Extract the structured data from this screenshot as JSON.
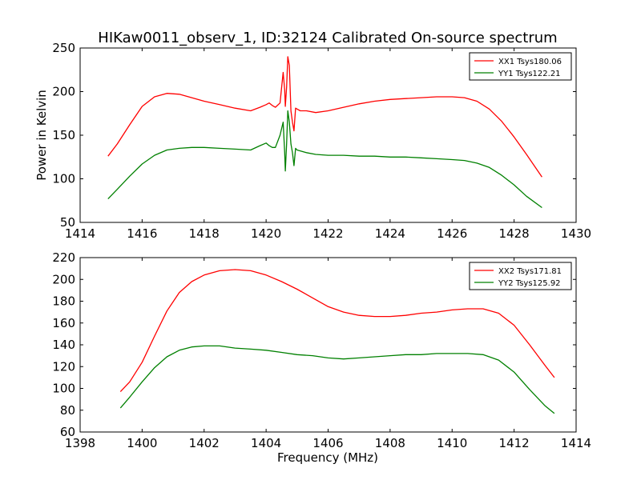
{
  "figure": {
    "title": "HIKaw0011_observ_1, ID:32124 Calibrated On-source spectrum"
  },
  "chart_data": [
    {
      "type": "line",
      "title": "HIKaw0011_observ_1, ID:32124 Calibrated On-source spectrum",
      "xlabel": "",
      "ylabel": "Power in Kelvin",
      "xlim": [
        1414,
        1430
      ],
      "ylim": [
        50,
        250
      ],
      "xticks": [
        1414,
        1416,
        1418,
        1420,
        1422,
        1424,
        1426,
        1428,
        1430
      ],
      "yticks": [
        50,
        100,
        150,
        200,
        250
      ],
      "grid": false,
      "legend_position": "top-right",
      "series": [
        {
          "name": "XX1 Tsys180.06",
          "color": "#ff0000",
          "x": [
            1414.9,
            1415.2,
            1415.6,
            1416.0,
            1416.4,
            1416.8,
            1417.2,
            1417.6,
            1418.0,
            1418.5,
            1419.0,
            1419.5,
            1419.8,
            1420.0,
            1420.1,
            1420.2,
            1420.3,
            1420.45,
            1420.55,
            1420.6,
            1420.62,
            1420.66,
            1420.7,
            1420.75,
            1420.8,
            1420.85,
            1420.9,
            1420.95,
            1421.0,
            1421.1,
            1421.3,
            1421.6,
            1422.0,
            1422.5,
            1423.0,
            1423.5,
            1424.0,
            1424.5,
            1425.0,
            1425.5,
            1426.0,
            1426.4,
            1426.8,
            1427.2,
            1427.6,
            1428.0,
            1428.4,
            1428.9
          ],
          "y": [
            126,
            140,
            162,
            183,
            194,
            198,
            197,
            193,
            189,
            185,
            181,
            178,
            182,
            185,
            187,
            184,
            182,
            187,
            222,
            202,
            183,
            205,
            240,
            230,
            178,
            165,
            155,
            181,
            180,
            178,
            178,
            176,
            178,
            182,
            186,
            189,
            191,
            192,
            193,
            194,
            194,
            193,
            189,
            180,
            166,
            148,
            128,
            102
          ]
        },
        {
          "name": "YY1 Tsys122.21",
          "color": "#008000",
          "x": [
            1414.9,
            1415.2,
            1415.6,
            1416.0,
            1416.4,
            1416.8,
            1417.2,
            1417.6,
            1418.0,
            1418.5,
            1419.0,
            1419.5,
            1419.8,
            1420.0,
            1420.1,
            1420.2,
            1420.3,
            1420.45,
            1420.55,
            1420.6,
            1420.62,
            1420.66,
            1420.7,
            1420.75,
            1420.8,
            1420.85,
            1420.9,
            1420.95,
            1421.0,
            1421.1,
            1421.3,
            1421.6,
            1422.0,
            1422.5,
            1423.0,
            1423.5,
            1424.0,
            1424.5,
            1425.0,
            1425.5,
            1426.0,
            1426.4,
            1426.8,
            1427.2,
            1427.6,
            1428.0,
            1428.4,
            1428.9
          ],
          "y": [
            77,
            88,
            103,
            117,
            127,
            133,
            135,
            136,
            136,
            135,
            134,
            133,
            138,
            141,
            138,
            136,
            136,
            150,
            165,
            130,
            109,
            140,
            178,
            165,
            140,
            130,
            115,
            135,
            133,
            132,
            130,
            128,
            127,
            127,
            126,
            126,
            125,
            125,
            124,
            123,
            122,
            121,
            118,
            113,
            104,
            93,
            80,
            67
          ]
        }
      ]
    },
    {
      "type": "line",
      "xlabel": "Frequency (MHz)",
      "ylabel": "",
      "xlim": [
        1398,
        1414
      ],
      "ylim": [
        60,
        220
      ],
      "xticks": [
        1398,
        1400,
        1402,
        1404,
        1406,
        1408,
        1410,
        1412,
        1414
      ],
      "yticks": [
        60,
        80,
        100,
        120,
        140,
        160,
        180,
        200,
        220
      ],
      "grid": false,
      "legend_position": "top-right",
      "series": [
        {
          "name": "XX2 Tsys171.81",
          "color": "#ff0000",
          "x": [
            1399.3,
            1399.6,
            1400.0,
            1400.4,
            1400.8,
            1401.2,
            1401.6,
            1402.0,
            1402.5,
            1403.0,
            1403.5,
            1404.0,
            1404.5,
            1405.0,
            1405.5,
            1406.0,
            1406.5,
            1407.0,
            1407.5,
            1408.0,
            1408.5,
            1409.0,
            1409.5,
            1410.0,
            1410.5,
            1411.0,
            1411.5,
            1412.0,
            1412.5,
            1413.0,
            1413.3
          ],
          "y": [
            97,
            106,
            124,
            148,
            171,
            188,
            198,
            204,
            208,
            209,
            208,
            204,
            198,
            191,
            183,
            175,
            170,
            167,
            166,
            166,
            167,
            169,
            170,
            172,
            173,
            173,
            169,
            158,
            140,
            121,
            110
          ]
        },
        {
          "name": "YY2 Tsys125.92",
          "color": "#008000",
          "x": [
            1399.3,
            1399.6,
            1400.0,
            1400.4,
            1400.8,
            1401.2,
            1401.6,
            1402.0,
            1402.5,
            1403.0,
            1403.5,
            1404.0,
            1404.5,
            1405.0,
            1405.5,
            1406.0,
            1406.5,
            1407.0,
            1407.5,
            1408.0,
            1408.5,
            1409.0,
            1409.5,
            1410.0,
            1410.5,
            1411.0,
            1411.5,
            1412.0,
            1412.5,
            1413.0,
            1413.3
          ],
          "y": [
            82,
            92,
            106,
            119,
            129,
            135,
            138,
            139,
            139,
            137,
            136,
            135,
            133,
            131,
            130,
            128,
            127,
            128,
            129,
            130,
            131,
            131,
            132,
            132,
            132,
            131,
            126,
            115,
            99,
            84,
            77
          ]
        }
      ]
    }
  ]
}
